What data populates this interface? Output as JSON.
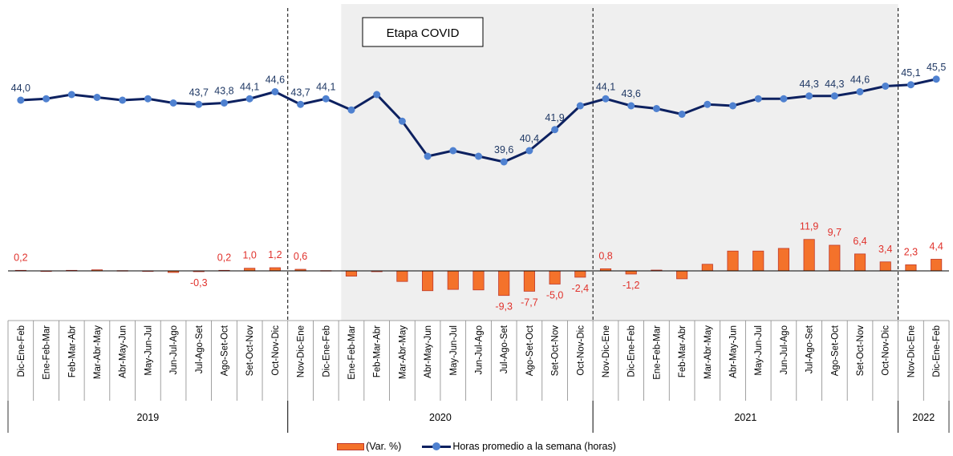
{
  "chart_data": {
    "type": "bar+line",
    "annotation": "Etapa COVID",
    "categories": [
      "Dic-Ene-Feb",
      "Ene-Feb-Mar",
      "Feb-Mar-Abr",
      "Mar-Abr-May",
      "Abr-May-Jun",
      "May-Jun-Jul",
      "Jun-Jul-Ago",
      "Jul-Ago-Set",
      "Ago-Set-Oct",
      "Set-Oct-Nov",
      "Oct-Nov-Dic",
      "Nov-Dic-Ene",
      "Dic-Ene-Feb",
      "Ene-Feb-Mar",
      "Feb-Mar-Abr",
      "Mar-Abr-May",
      "Abr-May-Jun",
      "May-Jun-Jul",
      "Jun-Jul-Ago",
      "Jul-Ago-Set",
      "Ago-Set-Oct",
      "Set-Oct-Nov",
      "Oct-Nov-Dic",
      "Nov-Dic-Ene",
      "Dic-Ene-Feb",
      "Ene-Feb-Mar",
      "Feb-Mar-Abr",
      "Mar-Abr-May",
      "Abr-May-Jun",
      "May-Jun-Jul",
      "Jun-Jul-Ago",
      "Jul-Ago-Set",
      "Ago-Set-Oct",
      "Set-Oct-Nov",
      "Oct-Nov-Dic",
      "Nov-Dic-Ene",
      "Dic-Ene-Feb"
    ],
    "years": [
      {
        "label": "2019",
        "start": 0,
        "end": 10
      },
      {
        "label": "2020",
        "start": 11,
        "end": 22
      },
      {
        "label": "2021",
        "start": 23,
        "end": 34
      },
      {
        "label": "2022",
        "start": 35,
        "end": 36
      }
    ],
    "shaded_range": [
      13,
      34
    ],
    "series": [
      {
        "name": "(Var. %)",
        "type": "bar",
        "color": "#f4722b",
        "values": [
          0.2,
          -0.2,
          0.2,
          0.4,
          0.1,
          -0.1,
          -0.6,
          -0.3,
          0.2,
          1.0,
          1.2,
          0.6,
          0.1,
          -2.0,
          -0.3,
          -4.0,
          -7.5,
          -7.0,
          -7.2,
          -9.3,
          -7.7,
          -5.0,
          -2.4,
          0.8,
          -1.2,
          0.3,
          -3.0,
          2.5,
          7.5,
          7.5,
          8.5,
          11.9,
          9.7,
          6.4,
          3.4,
          2.3,
          4.4
        ],
        "labels": {
          "0": "0,2",
          "7": "-0,3",
          "8": "0,2",
          "9": "1,0",
          "10": "1,2",
          "11": "0,6",
          "19": "-9,3",
          "20": "-7,7",
          "21": "-5,0",
          "22": "-2,4",
          "23": "0,8",
          "24": "-1,2",
          "31": "11,9",
          "32": "9,7",
          "33": "6,4",
          "34": "3,4",
          "35": "2,3",
          "36": "4,4"
        }
      },
      {
        "name": "Horas promedio a la semana (horas)",
        "type": "line",
        "color": "#0d2160",
        "marker_color": "#4f81d0",
        "values": [
          44.0,
          44.1,
          44.4,
          44.2,
          44.0,
          44.1,
          43.8,
          43.7,
          43.8,
          44.1,
          44.6,
          43.7,
          44.1,
          43.3,
          44.4,
          42.5,
          40.0,
          40.4,
          40.0,
          39.6,
          40.4,
          41.9,
          43.6,
          44.1,
          43.6,
          43.4,
          43.0,
          43.7,
          43.6,
          44.1,
          44.1,
          44.3,
          44.3,
          44.6,
          45.0,
          45.1,
          45.5
        ],
        "labels": {
          "0": "44,0",
          "7": "43,7",
          "8": "43,8",
          "9": "44,1",
          "10": "44,6",
          "11": "43,7",
          "12": "44,1",
          "19": "39,6",
          "20": "40,4",
          "21": "41,9",
          "23": "44,1",
          "24": "43,6",
          "31": "44,3",
          "32": "44,3",
          "33": "44,6",
          "35": "45,1",
          "36": "45,5"
        }
      }
    ],
    "legend": [
      "(Var. %)",
      "Horas promedio a la semana (horas)"
    ],
    "legend_position": "bottom"
  }
}
